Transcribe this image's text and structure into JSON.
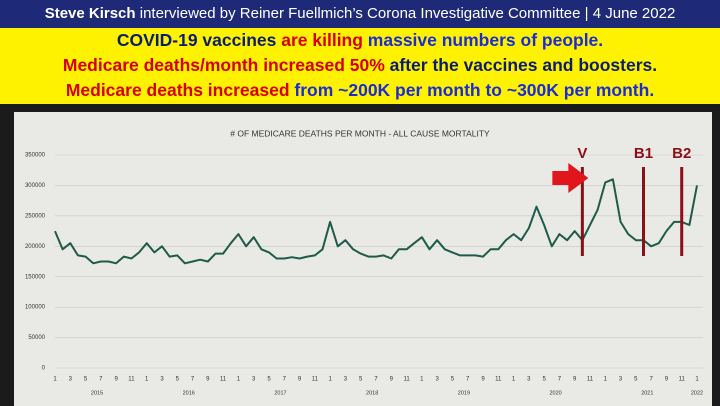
{
  "banner": {
    "line1": [
      {
        "text": "Steve Kirsch",
        "color": "#ffffff",
        "bold": true
      },
      {
        "text": " interviewed by Reiner Fuellmich’s Corona Investigative Committee | 4 June 2022",
        "color": "#ffffff",
        "bold": false
      }
    ],
    "line2": [
      {
        "text": "COVID-19 vaccines ",
        "color": "#0b1e6e"
      },
      {
        "text": "are killing",
        "color": "#d50000"
      },
      {
        "text": " massive numbers of people.",
        "color": "#1a2cd6"
      }
    ],
    "line3": [
      {
        "text": "Medicare deaths/month increased 50%",
        "color": "#d50000"
      },
      {
        "text": " after the vaccines and boosters.",
        "color": "#0b1e6e"
      }
    ],
    "line4": [
      {
        "text": "Medicare deaths increased ",
        "color": "#d50000"
      },
      {
        "text": "from ~200K per month to ~300K per month.",
        "color": "#1a2cd6"
      }
    ]
  },
  "chart_data": {
    "type": "line",
    "title": "# OF MEDICARE DEATHS PER MONTH - ALL CAUSE MORTALITY",
    "categories": [
      "1",
      null,
      "3",
      null,
      "5",
      null,
      "7",
      null,
      "9",
      null,
      "11",
      null,
      "1",
      null,
      "3",
      null,
      "5",
      null,
      "7",
      null,
      "9",
      null,
      "11",
      null,
      "1",
      null,
      "3",
      null,
      "5",
      null,
      "7",
      null,
      "9",
      null,
      "11",
      null,
      "1",
      null,
      "3",
      null,
      "5",
      null,
      "7",
      null,
      "9",
      null,
      "11",
      null,
      "1",
      null,
      "3",
      null,
      "5",
      null,
      "7",
      null,
      "9",
      null,
      "11",
      null,
      "1",
      null,
      "3",
      null,
      "5",
      null,
      "7",
      null,
      "9",
      null,
      "11",
      null,
      "1",
      null,
      "3",
      null,
      "5",
      null,
      "7",
      null,
      "9",
      null,
      "11",
      null,
      "1"
    ],
    "year_labels": [
      "2015",
      "2016",
      "2017",
      "2018",
      "2019",
      "2020",
      "2021",
      "2022"
    ],
    "series": [
      {
        "name": "Medicare deaths",
        "color": "#1f5b4a",
        "values": [
          225000,
          195000,
          205000,
          185000,
          183000,
          172000,
          175000,
          175000,
          172000,
          183000,
          180000,
          190000,
          205000,
          190000,
          200000,
          183000,
          185000,
          172000,
          175000,
          178000,
          175000,
          188000,
          188000,
          205000,
          220000,
          200000,
          215000,
          195000,
          190000,
          180000,
          180000,
          182000,
          180000,
          183000,
          185000,
          195000,
          240000,
          200000,
          210000,
          195000,
          188000,
          183000,
          183000,
          185000,
          180000,
          195000,
          195000,
          205000,
          215000,
          195000,
          210000,
          195000,
          190000,
          185000,
          185000,
          185000,
          183000,
          195000,
          195000,
          210000,
          220000,
          210000,
          230000,
          265000,
          235000,
          200000,
          220000,
          210000,
          225000,
          210000,
          235000,
          260000,
          305000,
          310000,
          240000,
          220000,
          210000,
          210000,
          200000,
          205000,
          225000,
          240000,
          240000,
          235000,
          300000
        ]
      }
    ],
    "ylim": [
      0,
      350000
    ],
    "yticks": [
      0,
      50000,
      100000,
      150000,
      200000,
      250000,
      300000,
      350000
    ],
    "grid": true,
    "annotations": [
      "V",
      "B1",
      "B2"
    ]
  }
}
